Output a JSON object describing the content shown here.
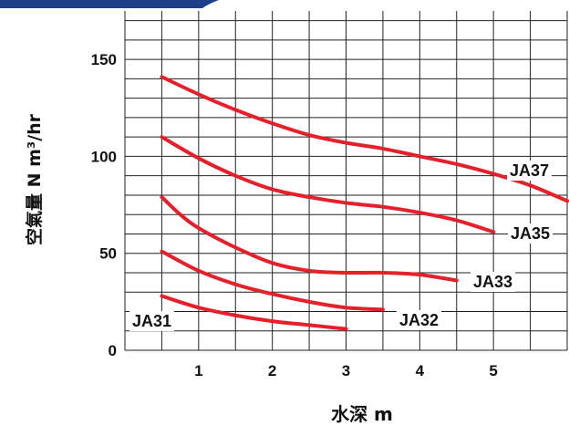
{
  "chart_data": {
    "type": "line",
    "xlabel": "水深 m",
    "ylabel": "空氣量 N m³/hr",
    "xlim": [
      0,
      6
    ],
    "ylim": [
      0,
      175
    ],
    "xticks": [
      "1",
      "2",
      "3",
      "4",
      "5"
    ],
    "yticks": [
      "0",
      "50",
      "100",
      "150"
    ],
    "grid": true,
    "line_color": "#e5202a",
    "series": [
      {
        "name": "JA37",
        "x": [
          0.5,
          1.0,
          1.5,
          2.0,
          2.5,
          3.0,
          3.5,
          4.0,
          4.5,
          5.0,
          5.5,
          6.0
        ],
        "y": [
          141,
          132,
          124,
          117,
          111,
          107,
          104,
          100,
          96,
          91,
          85,
          77
        ]
      },
      {
        "name": "JA35",
        "x": [
          0.5,
          1.0,
          1.5,
          2.0,
          2.5,
          3.0,
          3.5,
          4.0,
          4.5,
          5.0
        ],
        "y": [
          110,
          99,
          90,
          83,
          79,
          76,
          74,
          71,
          67,
          61
        ]
      },
      {
        "name": "JA33",
        "x": [
          0.5,
          0.75,
          1.0,
          1.5,
          2.0,
          2.5,
          3.0,
          3.5,
          4.0,
          4.5
        ],
        "y": [
          79,
          70,
          63,
          53,
          45,
          41,
          40,
          40,
          39,
          36
        ]
      },
      {
        "name": "JA32",
        "x": [
          0.5,
          1.0,
          1.5,
          2.0,
          2.5,
          3.0,
          3.5
        ],
        "y": [
          51,
          41,
          34,
          29,
          25,
          22,
          21
        ]
      },
      {
        "name": "JA31",
        "x": [
          0.5,
          1.0,
          1.5,
          2.0,
          2.5,
          3.0
        ],
        "y": [
          28,
          22,
          18,
          15,
          13,
          11
        ]
      }
    ]
  }
}
